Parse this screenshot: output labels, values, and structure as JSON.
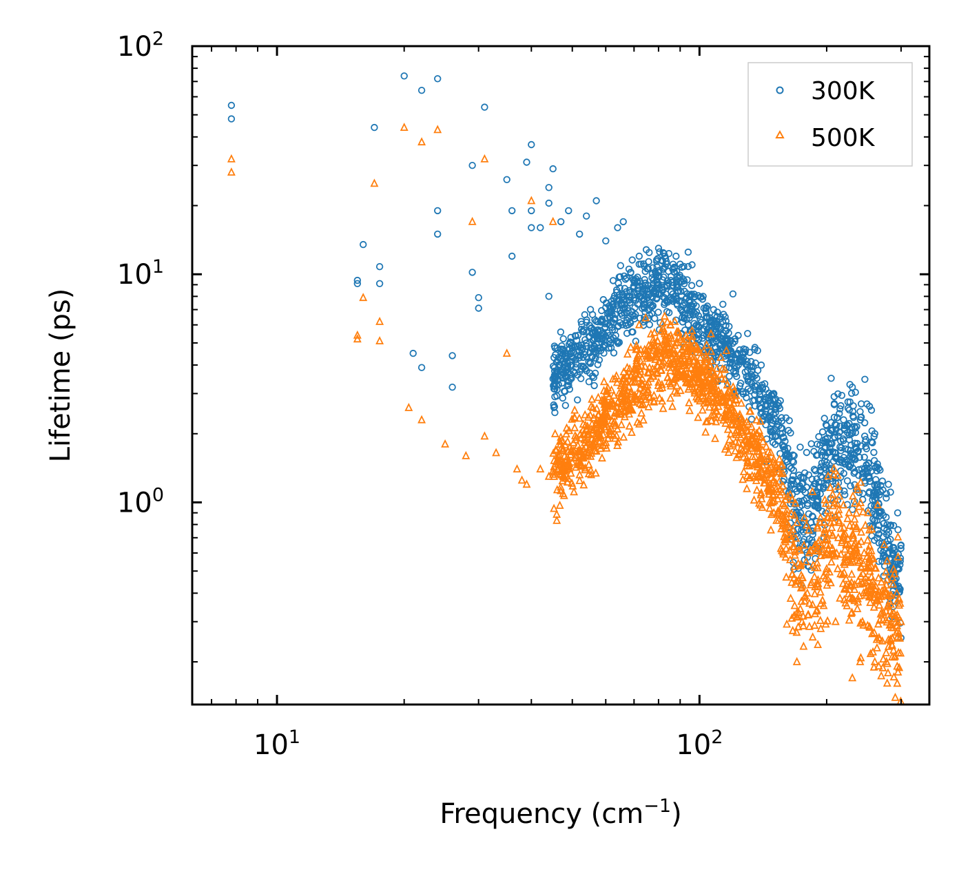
{
  "chart_data": {
    "type": "scatter",
    "xscale": "log",
    "yscale": "log",
    "xlabel": "Frequency (cm",
    "xlabel_sup": "−1",
    "xlabel_end": ")",
    "ylabel": "Lifetime (ps)",
    "xlim": [
      6.3,
      350
    ],
    "ylim": [
      0.13,
      100
    ],
    "x_ticks": [
      {
        "value": 10,
        "base": "10",
        "exp": "1"
      },
      {
        "value": 100,
        "base": "10",
        "exp": "2"
      }
    ],
    "y_ticks": [
      {
        "value": 1,
        "base": "10",
        "exp": "0"
      },
      {
        "value": 10,
        "base": "10",
        "exp": "1"
      },
      {
        "value": 100,
        "base": "10",
        "exp": "2"
      }
    ],
    "legend_position": "top-right",
    "series": [
      {
        "name": "300K",
        "marker": "circle",
        "color": "#1f77b4"
      },
      {
        "name": "500K",
        "marker": "triangle",
        "color": "#ff7f0e"
      }
    ],
    "series_300K_sample": [
      [
        7.8,
        55
      ],
      [
        7.8,
        48
      ],
      [
        17,
        44
      ],
      [
        20,
        74
      ],
      [
        22,
        64
      ],
      [
        24,
        72
      ],
      [
        31,
        54
      ],
      [
        16,
        13.5
      ],
      [
        17.5,
        10.8
      ],
      [
        15.5,
        9.4
      ],
      [
        15.5,
        9.1
      ],
      [
        17.5,
        9.1
      ],
      [
        21,
        4.5
      ],
      [
        22,
        3.9
      ],
      [
        26,
        3.2
      ],
      [
        26,
        4.4
      ],
      [
        29,
        10.2
      ],
      [
        29,
        30
      ],
      [
        30,
        7.1
      ],
      [
        30,
        7.9
      ],
      [
        24,
        19
      ],
      [
        24,
        15
      ],
      [
        35,
        26
      ],
      [
        36,
        19
      ],
      [
        36,
        12
      ],
      [
        39,
        31
      ],
      [
        40,
        37
      ],
      [
        40,
        19
      ],
      [
        40,
        16
      ],
      [
        42,
        16
      ],
      [
        44,
        24
      ],
      [
        45,
        29
      ],
      [
        44,
        20.5
      ],
      [
        44,
        8
      ],
      [
        47,
        17
      ],
      [
        49,
        19
      ],
      [
        52,
        15
      ],
      [
        54,
        18
      ],
      [
        57,
        21
      ],
      [
        60,
        14
      ],
      [
        64,
        16
      ],
      [
        66,
        17
      ],
      [
        72,
        12
      ],
      [
        80,
        13
      ],
      [
        88,
        12
      ],
      [
        94,
        12.5
      ],
      [
        96,
        11
      ],
      [
        102,
        8
      ],
      [
        108,
        7
      ],
      [
        115,
        6.5
      ],
      [
        120,
        8.2
      ],
      [
        130,
        5.5
      ],
      [
        140,
        4
      ],
      [
        150,
        3
      ],
      [
        160,
        1.6
      ],
      [
        170,
        0.9
      ],
      [
        190,
        1.8
      ],
      [
        205,
        3.5
      ],
      [
        230,
        3.2
      ],
      [
        240,
        2.5
      ],
      [
        260,
        2
      ],
      [
        280,
        1.2
      ],
      [
        300,
        0.65
      ]
    ],
    "series_500K_sample": [
      [
        7.8,
        32
      ],
      [
        7.8,
        28
      ],
      [
        17,
        25
      ],
      [
        20,
        44
      ],
      [
        22,
        38
      ],
      [
        24,
        43
      ],
      [
        31,
        32
      ],
      [
        16,
        7.9
      ],
      [
        17.5,
        6.2
      ],
      [
        15.5,
        5.4
      ],
      [
        15.5,
        5.2
      ],
      [
        17.5,
        5.1
      ],
      [
        20.5,
        2.6
      ],
      [
        22,
        2.3
      ],
      [
        25,
        1.8
      ],
      [
        28,
        1.6
      ],
      [
        29,
        17
      ],
      [
        31,
        1.95
      ],
      [
        33,
        1.65
      ],
      [
        35,
        4.5
      ],
      [
        37,
        1.4
      ],
      [
        38,
        1.25
      ],
      [
        39,
        1.2
      ],
      [
        40,
        21
      ],
      [
        42,
        1.4
      ],
      [
        44,
        1.3
      ],
      [
        45,
        17
      ],
      [
        48,
        1.4
      ],
      [
        50,
        1.5
      ],
      [
        55,
        1.7
      ],
      [
        60,
        2.5
      ],
      [
        66,
        3.5
      ],
      [
        72,
        6
      ],
      [
        80,
        4.5
      ],
      [
        88,
        5
      ],
      [
        94,
        3.5
      ],
      [
        100,
        3.2
      ],
      [
        110,
        2.5
      ],
      [
        120,
        1.8
      ],
      [
        130,
        1.5
      ],
      [
        140,
        1.1
      ],
      [
        150,
        0.9
      ],
      [
        160,
        0.7
      ],
      [
        170,
        0.2
      ],
      [
        180,
        0.4
      ],
      [
        200,
        0.6
      ],
      [
        210,
        0.3
      ],
      [
        230,
        0.17
      ],
      [
        240,
        0.2
      ],
      [
        260,
        0.2
      ],
      [
        280,
        0.25
      ],
      [
        300,
        0.3
      ]
    ]
  }
}
